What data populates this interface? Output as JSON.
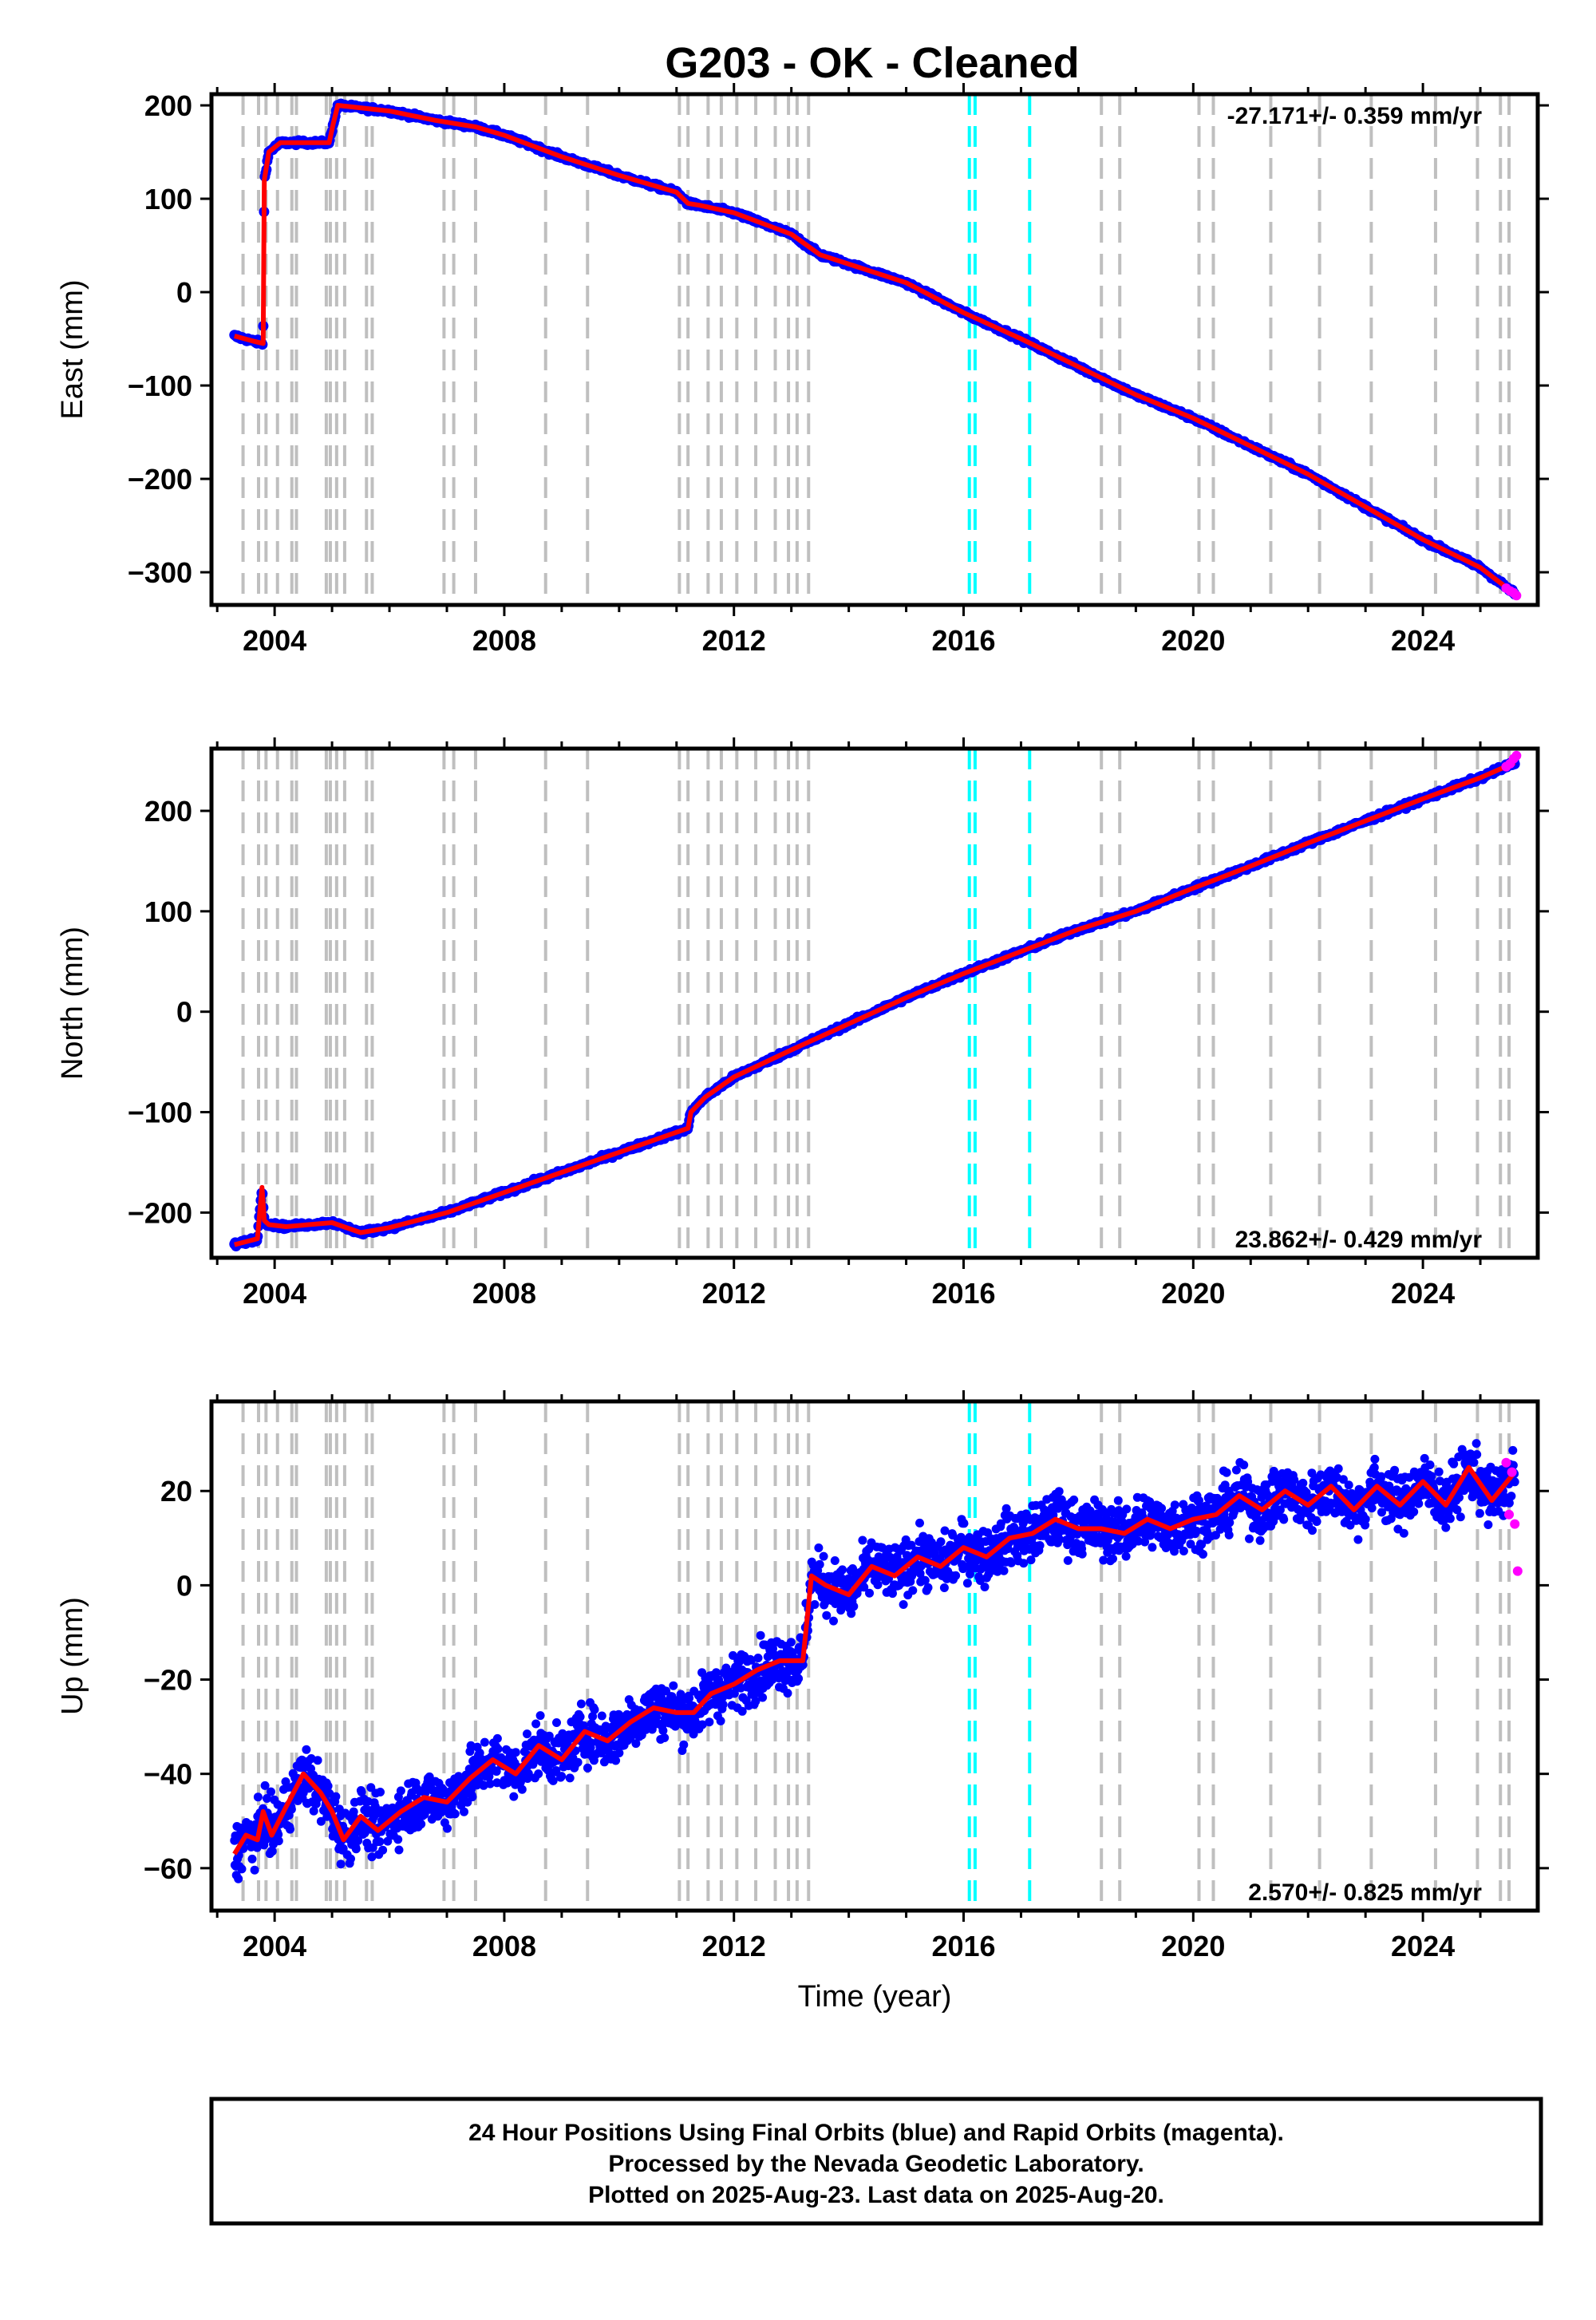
{
  "title": "G203  - OK - Cleaned",
  "footer": {
    "line1": "24 Hour Positions Using Final Orbits (blue) and Rapid Orbits (magenta).",
    "line2": "Processed by the Nevada Geodetic Laboratory.",
    "line3": "Plotted on 2025-Aug-23. Last data on 2025-Aug-20."
  },
  "colors": {
    "final_orbits": "#0000ff",
    "rapid_orbits": "#ff00ff",
    "model_fit": "#ff0000",
    "step_equipment": "#bfbfbf",
    "step_earthquake": "#00ffff"
  },
  "chart_data": [
    {
      "type": "scatter",
      "panel": "east",
      "ylabel": "East (mm)",
      "xlabel": "",
      "rate_label": "-27.171+/- 0.359 mm/yr",
      "xlim": [
        2002.9,
        2026.0
      ],
      "ylim": [
        -335,
        212
      ],
      "xticks": [
        2004,
        2008,
        2012,
        2016,
        2020,
        2024
      ],
      "yticks": [
        -300,
        -200,
        -100,
        0,
        100,
        200
      ],
      "grid": false,
      "step_lines_gray": [
        2003.45,
        2003.72,
        2003.85,
        2004.05,
        2004.3,
        2004.38,
        2004.9,
        2004.97,
        2005.08,
        2005.22,
        2005.6,
        2005.7,
        2006.95,
        2007.12,
        2007.5,
        2008.72,
        2009.45,
        2011.05,
        2011.2,
        2011.55,
        2011.78,
        2012.05,
        2012.38,
        2012.72,
        2012.95,
        2013.1,
        2013.3,
        2018.4,
        2018.72,
        2020.1,
        2020.35,
        2021.35,
        2022.2,
        2023.1,
        2024.22,
        2024.95,
        2025.35,
        2025.5
      ],
      "step_lines_cyan": [
        2016.1,
        2016.2,
        2017.15
      ],
      "series": [
        {
          "role": "model",
          "x": [
            2003.3,
            2003.6,
            2003.8,
            2003.82,
            2003.9,
            2004.1,
            2004.5,
            2004.95,
            2005.02,
            2005.1,
            2005.4,
            2006.0,
            2006.8,
            2007.5,
            2008.0,
            2009.0,
            2010.0,
            2011.0,
            2011.2,
            2011.4,
            2012.0,
            2013.0,
            2013.5,
            2014.0,
            2015.0,
            2016.0,
            2017.0,
            2018.0,
            2019.0,
            2020.0,
            2021.0,
            2022.0,
            2023.0,
            2024.0,
            2025.0,
            2025.6
          ],
          "y": [
            -47,
            -52,
            -55,
            120,
            150,
            160,
            160,
            160,
            180,
            200,
            198,
            194,
            184,
            177,
            168,
            145,
            125,
            107,
            95,
            93,
            85,
            62,
            40,
            30,
            10,
            -22,
            -50,
            -80,
            -110,
            -135,
            -165,
            -195,
            -230,
            -265,
            -295,
            -323
          ]
        },
        {
          "role": "rapid",
          "x": [
            2025.45,
            2025.52,
            2025.58,
            2025.63
          ],
          "y": [
            -317,
            -320,
            -322,
            -325
          ]
        }
      ]
    },
    {
      "type": "scatter",
      "panel": "north",
      "ylabel": "North (mm)",
      "xlabel": "",
      "rate_label": "23.862+/- 0.429 mm/yr",
      "xlim": [
        2002.9,
        2026.0
      ],
      "ylim": [
        -245,
        262
      ],
      "xticks": [
        2004,
        2008,
        2012,
        2016,
        2020,
        2024
      ],
      "yticks": [
        -200,
        -100,
        0,
        100,
        200
      ],
      "grid": false,
      "step_lines_gray": [
        2003.45,
        2003.72,
        2003.85,
        2004.05,
        2004.3,
        2004.38,
        2004.9,
        2004.97,
        2005.08,
        2005.22,
        2005.6,
        2005.7,
        2006.95,
        2007.12,
        2007.5,
        2008.72,
        2009.45,
        2011.05,
        2011.2,
        2011.55,
        2011.78,
        2012.05,
        2012.38,
        2012.72,
        2012.95,
        2013.1,
        2013.3,
        2018.4,
        2018.72,
        2020.1,
        2020.35,
        2021.35,
        2022.2,
        2023.1,
        2024.22,
        2024.95,
        2025.35,
        2025.5
      ],
      "step_lines_cyan": [
        2016.1,
        2016.2,
        2017.15
      ],
      "series": [
        {
          "role": "model",
          "x": [
            2003.3,
            2003.7,
            2003.78,
            2003.82,
            2003.9,
            2004.2,
            2005.0,
            2005.5,
            2006.0,
            2007.0,
            2008.0,
            2009.0,
            2010.0,
            2011.0,
            2011.2,
            2011.25,
            2011.5,
            2012.0,
            2013.0,
            2014.0,
            2015.0,
            2016.0,
            2017.0,
            2018.0,
            2019.0,
            2020.0,
            2021.0,
            2022.0,
            2023.0,
            2024.0,
            2025.0,
            2025.6
          ],
          "y": [
            -232,
            -226,
            -175,
            -208,
            -212,
            -214,
            -210,
            -220,
            -215,
            -200,
            -180,
            -160,
            -140,
            -120,
            -116,
            -100,
            -85,
            -65,
            -38,
            -12,
            14,
            38,
            60,
            82,
            100,
            123,
            145,
            168,
            190,
            212,
            233,
            248
          ]
        },
        {
          "role": "rapid",
          "x": [
            2025.45,
            2025.52,
            2025.58,
            2025.63
          ],
          "y": [
            244,
            247,
            252,
            255
          ]
        }
      ]
    },
    {
      "type": "scatter",
      "panel": "up",
      "ylabel": "Up (mm)",
      "xlabel": "Time (year)",
      "rate_label": "2.570+/- 0.825 mm/yr",
      "xlim": [
        2002.9,
        2026.0
      ],
      "ylim": [
        -69,
        39
      ],
      "xticks": [
        2004,
        2008,
        2012,
        2016,
        2020,
        2024
      ],
      "yticks": [
        -60,
        -40,
        -20,
        0,
        20
      ],
      "grid": false,
      "step_lines_gray": [
        2003.45,
        2003.72,
        2003.85,
        2004.05,
        2004.3,
        2004.38,
        2004.9,
        2004.97,
        2005.08,
        2005.22,
        2005.6,
        2005.7,
        2006.95,
        2007.12,
        2007.5,
        2008.72,
        2009.45,
        2011.05,
        2011.2,
        2011.55,
        2011.78,
        2012.05,
        2012.38,
        2012.72,
        2012.95,
        2013.1,
        2013.3,
        2018.4,
        2018.72,
        2020.1,
        2020.35,
        2021.35,
        2022.2,
        2023.1,
        2024.22,
        2024.95,
        2025.35,
        2025.5
      ],
      "step_lines_cyan": [
        2016.1,
        2016.2,
        2017.15
      ],
      "series": [
        {
          "role": "model",
          "x": [
            2003.3,
            2003.5,
            2003.7,
            2003.8,
            2003.95,
            2004.2,
            2004.5,
            2004.8,
            2005.0,
            2005.2,
            2005.5,
            2005.8,
            2006.2,
            2006.6,
            2007.0,
            2007.4,
            2007.8,
            2008.2,
            2008.6,
            2009.0,
            2009.4,
            2009.8,
            2010.2,
            2010.6,
            2011.0,
            2011.3,
            2011.6,
            2012.0,
            2012.4,
            2012.8,
            2013.2,
            2013.35,
            2013.6,
            2014.0,
            2014.4,
            2014.8,
            2015.2,
            2015.6,
            2016.0,
            2016.4,
            2016.8,
            2017.2,
            2017.6,
            2018.0,
            2018.4,
            2018.8,
            2019.2,
            2019.6,
            2020.0,
            2020.4,
            2020.8,
            2021.2,
            2021.6,
            2022.0,
            2022.4,
            2022.8,
            2023.2,
            2023.6,
            2024.0,
            2024.4,
            2024.8,
            2025.2,
            2025.6
          ],
          "y": [
            -57,
            -53,
            -54,
            -48,
            -53,
            -47,
            -40,
            -44,
            -48,
            -54,
            -49,
            -52,
            -48,
            -45,
            -46,
            -41,
            -37,
            -40,
            -34,
            -37,
            -31,
            -33,
            -29,
            -26,
            -27,
            -27,
            -23,
            -21,
            -18,
            -16,
            -16,
            2,
            0,
            -2,
            4,
            2,
            6,
            4,
            8,
            6,
            10,
            11,
            14,
            12,
            12,
            11,
            14,
            12,
            14,
            15,
            19,
            16,
            20,
            17,
            21,
            16,
            21,
            17,
            22,
            17,
            25,
            18,
            24
          ]
        },
        {
          "role": "rapid",
          "x": [
            2025.45,
            2025.5,
            2025.55,
            2025.6,
            2025.65
          ],
          "y": [
            26,
            15,
            24,
            13,
            3
          ]
        }
      ]
    }
  ]
}
